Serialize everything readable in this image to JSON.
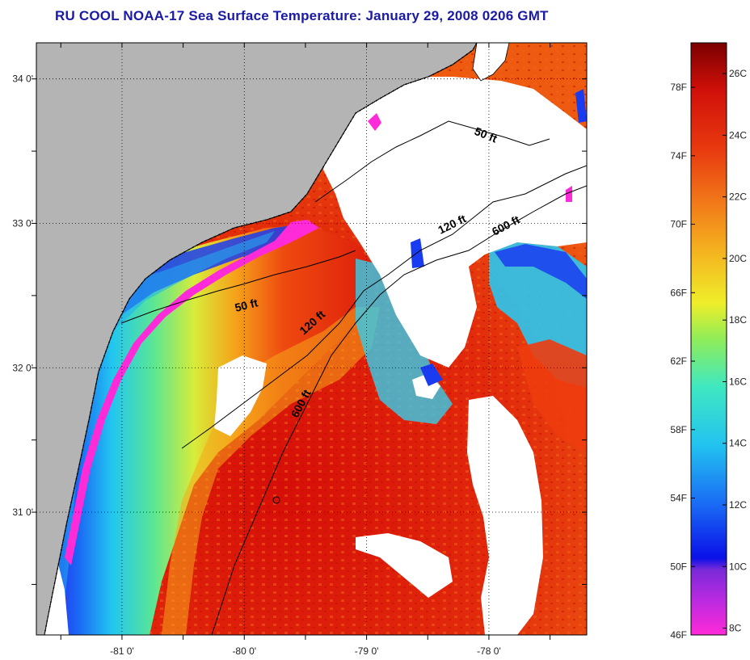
{
  "title": "RU COOL  NOAA-17  Sea Surface Temperature:  January 29, 2008 0206 GMT",
  "map": {
    "lon_range": [
      -81.7,
      -77.2
    ],
    "lat_range": [
      30.15,
      34.25
    ],
    "lon_ticks": [
      {
        "value": -81,
        "label": "-81 0'"
      },
      {
        "value": -80,
        "label": "-80 0'"
      },
      {
        "value": -79,
        "label": "-79 0'"
      },
      {
        "value": -78,
        "label": "-78 0'"
      }
    ],
    "lat_ticks": [
      {
        "value": 34,
        "label": "34 0'"
      },
      {
        "value": 33,
        "label": "33 0'"
      },
      {
        "value": 32,
        "label": "32 0'"
      },
      {
        "value": 31,
        "label": "31 0'"
      }
    ],
    "contour_labels": {
      "c50_north": "50 ft",
      "c50_south": "50 ft",
      "c120_north": "120 ft",
      "c120_south": "120 ft",
      "c600_north": "600 ft",
      "c600_south": "600 ft"
    },
    "colors": {
      "land": "#b4b4b4",
      "cloud": "#ffffff",
      "warm": "#dc1a0a",
      "orange": "#f28a14",
      "yellow": "#f0e428",
      "green": "#62e46a",
      "cyan": "#2ad6ee",
      "blue": "#1638f0",
      "purple": "#8a2ad8",
      "magenta": "#ff2ad8"
    }
  },
  "colorbar": {
    "f_labels": [
      {
        "value": 78,
        "label": "78F"
      },
      {
        "value": 74,
        "label": "74F"
      },
      {
        "value": 70,
        "label": "70F"
      },
      {
        "value": 66,
        "label": "66F"
      },
      {
        "value": 62,
        "label": "62F"
      },
      {
        "value": 58,
        "label": "58F"
      },
      {
        "value": 54,
        "label": "54F"
      },
      {
        "value": 50,
        "label": "50F"
      },
      {
        "value": 46,
        "label": "46F"
      }
    ],
    "c_labels": [
      {
        "value": 26,
        "label": "26C"
      },
      {
        "value": 24,
        "label": "24C"
      },
      {
        "value": 22,
        "label": "22C"
      },
      {
        "value": 20,
        "label": "20C"
      },
      {
        "value": 18,
        "label": "18C"
      },
      {
        "value": 16,
        "label": "16C"
      },
      {
        "value": 14,
        "label": "14C"
      },
      {
        "value": 12,
        "label": "12C"
      },
      {
        "value": 10,
        "label": "10C"
      },
      {
        "value": 8,
        "label": "8C"
      }
    ]
  }
}
